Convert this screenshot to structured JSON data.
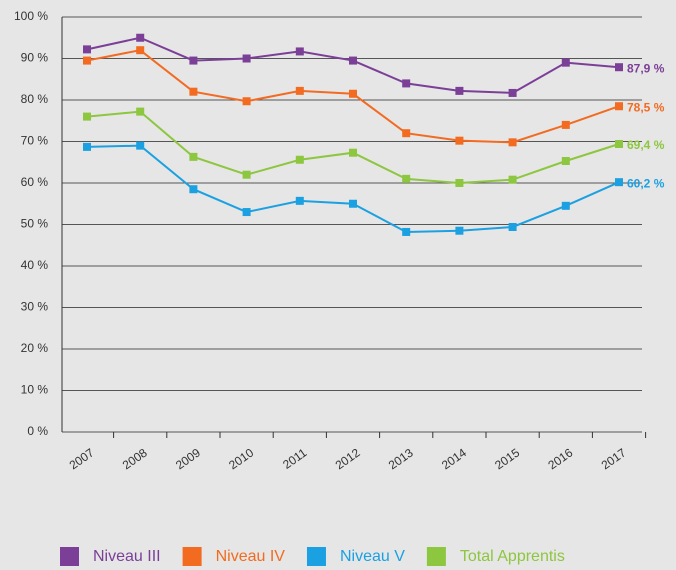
{
  "chart_data": {
    "type": "line",
    "categories": [
      "2007",
      "2008",
      "2009",
      "2010",
      "2011",
      "2012",
      "2013",
      "2014",
      "2015",
      "2016",
      "2017"
    ],
    "series": [
      {
        "name": "Niveau III",
        "color": "#7b3f98",
        "values": [
          92.2,
          95,
          89.5,
          90,
          91.7,
          89.5,
          84,
          82.2,
          81.7,
          89,
          87.9
        ],
        "value_labels": [
          null,
          null,
          null,
          null,
          null,
          null,
          null,
          null,
          null,
          null,
          "87,9 %"
        ]
      },
      {
        "name": "Niveau IV",
        "color": "#f26b21",
        "values": [
          89.5,
          92,
          82,
          79.7,
          82.2,
          81.5,
          72,
          70.2,
          69.8,
          74,
          78.5
        ],
        "value_labels": [
          null,
          null,
          null,
          null,
          null,
          null,
          null,
          null,
          null,
          null,
          "78,5 %"
        ]
      },
      {
        "name": "Niveau V",
        "color": "#1ba1e2",
        "values": [
          68.7,
          69,
          58.5,
          53,
          55.7,
          55,
          48.2,
          48.5,
          49.4,
          54.5,
          60.2
        ],
        "value_labels": [
          null,
          null,
          null,
          null,
          null,
          null,
          null,
          null,
          null,
          null,
          "60,2 %"
        ]
      },
      {
        "name": "Total Apprentis",
        "color": "#8dc63f",
        "values": [
          76,
          77.2,
          66.3,
          62,
          65.6,
          67.3,
          61,
          60,
          60.8,
          65.3,
          69.4
        ],
        "value_labels": [
          null,
          null,
          null,
          null,
          null,
          null,
          null,
          null,
          null,
          null,
          "69,4 %"
        ]
      }
    ],
    "ylim": [
      0,
      100
    ],
    "yticks": [
      {
        "value": 0,
        "label": "0 %"
      },
      {
        "value": 10,
        "label": "10 %"
      },
      {
        "value": 20,
        "label": "20 %"
      },
      {
        "value": 30,
        "label": "30 %"
      },
      {
        "value": 40,
        "label": "40 %"
      },
      {
        "value": 50,
        "label": "50 %"
      },
      {
        "value": 60,
        "label": "60 %"
      },
      {
        "value": 70,
        "label": "70 %"
      },
      {
        "value": 80,
        "label": "80 %"
      },
      {
        "value": 90,
        "label": "90 %"
      },
      {
        "value": 100,
        "label": "100 %"
      }
    ],
    "grid": true,
    "legend": "bottom"
  }
}
